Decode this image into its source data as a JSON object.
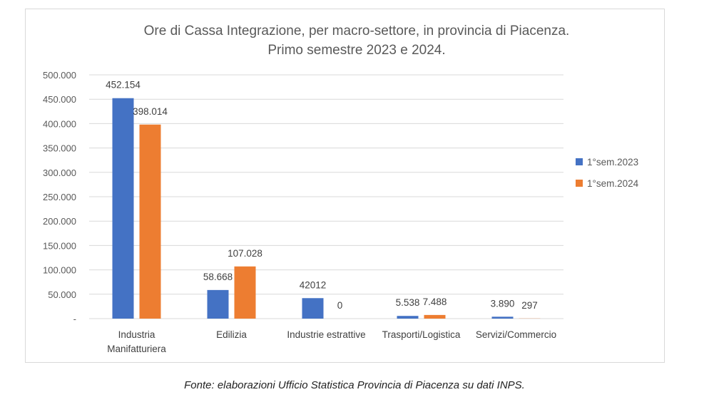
{
  "chart_data": {
    "type": "bar",
    "title": [
      "Ore di Cassa Integrazione, per macro-settore, in provincia di  Piacenza.",
      "Primo semestre 2023 e 2024."
    ],
    "categories": [
      [
        "Industria",
        "Manifatturiera"
      ],
      [
        "Edilizia"
      ],
      [
        "Industrie estrattive"
      ],
      [
        "Trasporti/Logistica"
      ],
      [
        "Servizi/Commercio"
      ]
    ],
    "series": [
      {
        "name": "1°sem.2023",
        "color": "#4472c4",
        "values": [
          452154,
          58668,
          42012,
          5538,
          3890
        ],
        "labels": [
          "452.154",
          "58.668",
          "42012",
          "5.538",
          "3.890"
        ]
      },
      {
        "name": "1°sem.2024",
        "color": "#ed7d31",
        "values": [
          398014,
          107028,
          0,
          7488,
          297
        ],
        "labels": [
          "398.014",
          "107.028",
          "0",
          "7.488",
          "297"
        ]
      }
    ],
    "ylim": [
      0,
      500000
    ],
    "yticks": [
      0,
      50000,
      100000,
      150000,
      200000,
      250000,
      300000,
      350000,
      400000,
      450000,
      500000
    ],
    "ytick_labels": [
      "-",
      "50.000",
      "100.000",
      "150.000",
      "200.000",
      "250.000",
      "300.000",
      "350.000",
      "400.000",
      "450.000",
      "500.000"
    ],
    "grid": true,
    "legend_position": "right"
  },
  "footnote": "Fonte: elaborazioni Ufficio Statistica Provincia di Piacenza su dati INPS."
}
